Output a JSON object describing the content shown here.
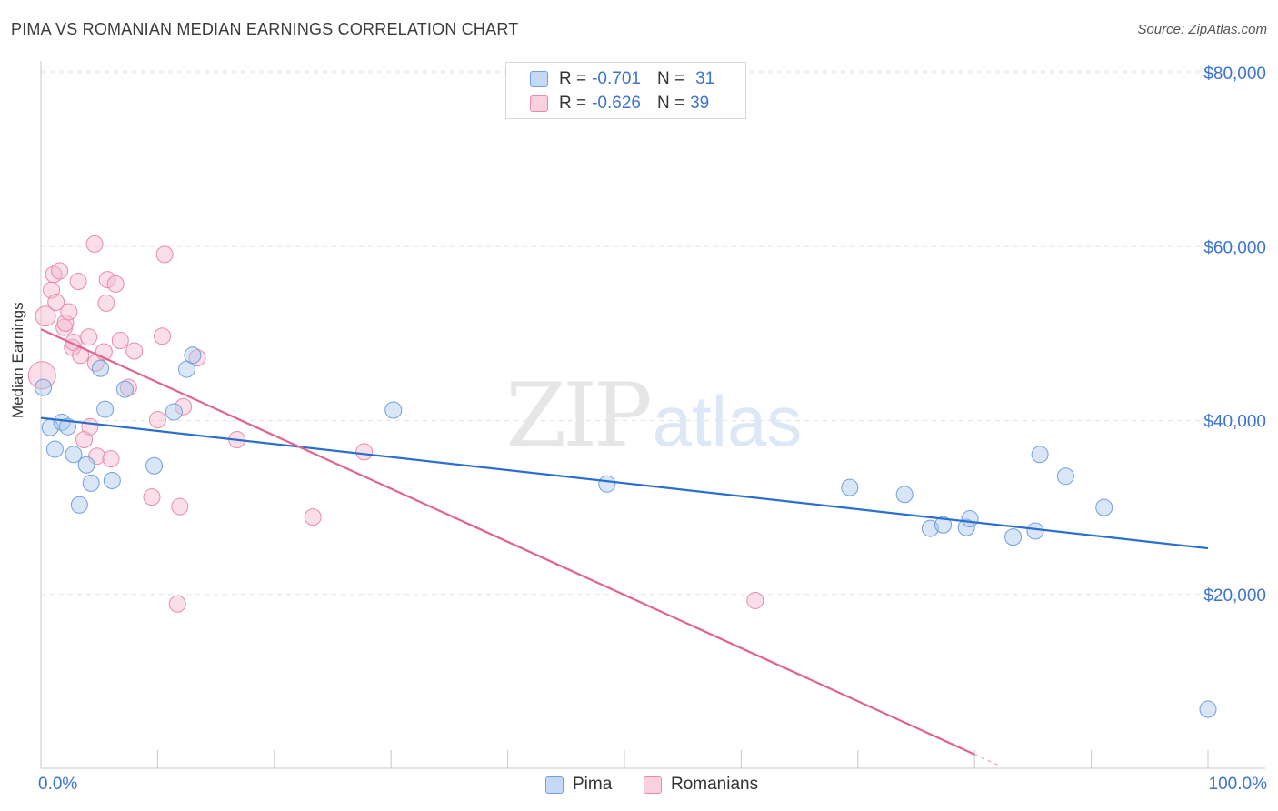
{
  "header": {
    "title": "PIMA VS ROMANIAN MEDIAN EARNINGS CORRELATION CHART",
    "source": "Source: ZipAtlas.com"
  },
  "watermark": {
    "zip": "ZIP",
    "atlas": "atlas"
  },
  "legend": {
    "rows": [
      {
        "r_label": "R =",
        "r_value": "-0.701",
        "n_label": "N =",
        "n_value": "31",
        "color": "#a8c8f0"
      },
      {
        "r_label": "R =",
        "r_value": "-0.626",
        "n_label": "N =",
        "n_value": "39",
        "color": "#f5b6cb"
      }
    ]
  },
  "bottom_legend": {
    "pima": "Pima",
    "romanians": "Romanians"
  },
  "colors": {
    "pima_fill": "#a8c8f0",
    "pima_stroke": "#6f9fdc",
    "pima_line": "#2a6fd0",
    "rom_fill": "#f5b6cb",
    "rom_stroke": "#e88aaa",
    "rom_line": "#e0648f",
    "axis_text": "#3b73d1",
    "grid": "#e3e3e3"
  },
  "chart_data": {
    "type": "scatter",
    "title": "PIMA VS ROMANIAN MEDIAN EARNINGS CORRELATION CHART",
    "xlabel": "",
    "ylabel": "Median Earnings",
    "xlim": [
      0,
      100
    ],
    "ylim": [
      0,
      80000
    ],
    "x_tick_labels": {
      "min": "0.0%",
      "max": "100.0%"
    },
    "y_ticks": [
      {
        "value": 20000,
        "label": "$20,000"
      },
      {
        "value": 40000,
        "label": "$40,000"
      },
      {
        "value": 60000,
        "label": "$60,000"
      },
      {
        "value": 80000,
        "label": "$80,000"
      }
    ],
    "series": [
      {
        "name": "Pima",
        "trend": {
          "x": [
            0,
            100
          ],
          "y": [
            40300,
            25300
          ]
        },
        "points": [
          {
            "x": 0.2,
            "y": 43800,
            "r": 9
          },
          {
            "x": 0.8,
            "y": 39200,
            "r": 9
          },
          {
            "x": 1.2,
            "y": 36700,
            "r": 9
          },
          {
            "x": 1.8,
            "y": 39800,
            "r": 9
          },
          {
            "x": 2.3,
            "y": 39300,
            "r": 9
          },
          {
            "x": 2.8,
            "y": 36100,
            "r": 9
          },
          {
            "x": 3.3,
            "y": 30300,
            "r": 9
          },
          {
            "x": 3.9,
            "y": 34900,
            "r": 9
          },
          {
            "x": 4.3,
            "y": 32800,
            "r": 9
          },
          {
            "x": 5.1,
            "y": 46000,
            "r": 9
          },
          {
            "x": 5.5,
            "y": 41300,
            "r": 9
          },
          {
            "x": 6.1,
            "y": 33100,
            "r": 9
          },
          {
            "x": 7.2,
            "y": 43600,
            "r": 9
          },
          {
            "x": 9.7,
            "y": 34800,
            "r": 9
          },
          {
            "x": 11.4,
            "y": 41000,
            "r": 9
          },
          {
            "x": 12.5,
            "y": 45900,
            "r": 9
          },
          {
            "x": 13.0,
            "y": 47500,
            "r": 9
          },
          {
            "x": 30.2,
            "y": 41200,
            "r": 9
          },
          {
            "x": 48.5,
            "y": 32700,
            "r": 9
          },
          {
            "x": 69.3,
            "y": 32300,
            "r": 9
          },
          {
            "x": 74.0,
            "y": 31500,
            "r": 9
          },
          {
            "x": 76.2,
            "y": 27600,
            "r": 9
          },
          {
            "x": 77.3,
            "y": 28000,
            "r": 9
          },
          {
            "x": 79.3,
            "y": 27700,
            "r": 9
          },
          {
            "x": 79.6,
            "y": 28700,
            "r": 9
          },
          {
            "x": 83.3,
            "y": 26600,
            "r": 9
          },
          {
            "x": 85.2,
            "y": 27300,
            "r": 9
          },
          {
            "x": 85.6,
            "y": 36100,
            "r": 9
          },
          {
            "x": 87.8,
            "y": 33600,
            "r": 9
          },
          {
            "x": 91.1,
            "y": 30000,
            "r": 9
          },
          {
            "x": 100.0,
            "y": 6800,
            "r": 9
          }
        ]
      },
      {
        "name": "Romanians",
        "trend": {
          "x": [
            0,
            80
          ],
          "y": [
            50500,
            1600
          ]
        },
        "points": [
          {
            "x": 0.1,
            "y": 45200,
            "r": 15
          },
          {
            "x": 0.4,
            "y": 52000,
            "r": 11
          },
          {
            "x": 0.9,
            "y": 55000,
            "r": 9
          },
          {
            "x": 1.1,
            "y": 56800,
            "r": 9
          },
          {
            "x": 1.3,
            "y": 53600,
            "r": 9
          },
          {
            "x": 1.6,
            "y": 57200,
            "r": 9
          },
          {
            "x": 2.0,
            "y": 50700,
            "r": 9
          },
          {
            "x": 2.1,
            "y": 51200,
            "r": 9
          },
          {
            "x": 2.4,
            "y": 52500,
            "r": 9
          },
          {
            "x": 2.7,
            "y": 48400,
            "r": 9
          },
          {
            "x": 2.8,
            "y": 49000,
            "r": 9
          },
          {
            "x": 3.2,
            "y": 56000,
            "r": 9
          },
          {
            "x": 3.4,
            "y": 47500,
            "r": 9
          },
          {
            "x": 3.7,
            "y": 37800,
            "r": 9
          },
          {
            "x": 4.1,
            "y": 49600,
            "r": 9
          },
          {
            "x": 4.2,
            "y": 39300,
            "r": 9
          },
          {
            "x": 4.7,
            "y": 46600,
            "r": 9
          },
          {
            "x": 4.8,
            "y": 35900,
            "r": 9
          },
          {
            "x": 5.4,
            "y": 47900,
            "r": 9
          },
          {
            "x": 5.6,
            "y": 53500,
            "r": 9
          },
          {
            "x": 5.7,
            "y": 56200,
            "r": 9
          },
          {
            "x": 6.0,
            "y": 35600,
            "r": 9
          },
          {
            "x": 6.4,
            "y": 55700,
            "r": 9
          },
          {
            "x": 6.8,
            "y": 49200,
            "r": 9
          },
          {
            "x": 7.5,
            "y": 43800,
            "r": 9
          },
          {
            "x": 8.0,
            "y": 48000,
            "r": 9
          },
          {
            "x": 9.5,
            "y": 31200,
            "r": 9
          },
          {
            "x": 10.0,
            "y": 40100,
            "r": 9
          },
          {
            "x": 10.4,
            "y": 49700,
            "r": 9
          },
          {
            "x": 10.6,
            "y": 59100,
            "r": 9
          },
          {
            "x": 11.7,
            "y": 18900,
            "r": 9
          },
          {
            "x": 11.9,
            "y": 30100,
            "r": 9
          },
          {
            "x": 12.2,
            "y": 41600,
            "r": 9
          },
          {
            "x": 13.4,
            "y": 47200,
            "r": 9
          },
          {
            "x": 16.8,
            "y": 37800,
            "r": 9
          },
          {
            "x": 23.3,
            "y": 28900,
            "r": 9
          },
          {
            "x": 27.7,
            "y": 36400,
            "r": 9
          },
          {
            "x": 4.6,
            "y": 60300,
            "r": 9
          },
          {
            "x": 61.2,
            "y": 19300,
            "r": 9
          }
        ]
      }
    ]
  }
}
